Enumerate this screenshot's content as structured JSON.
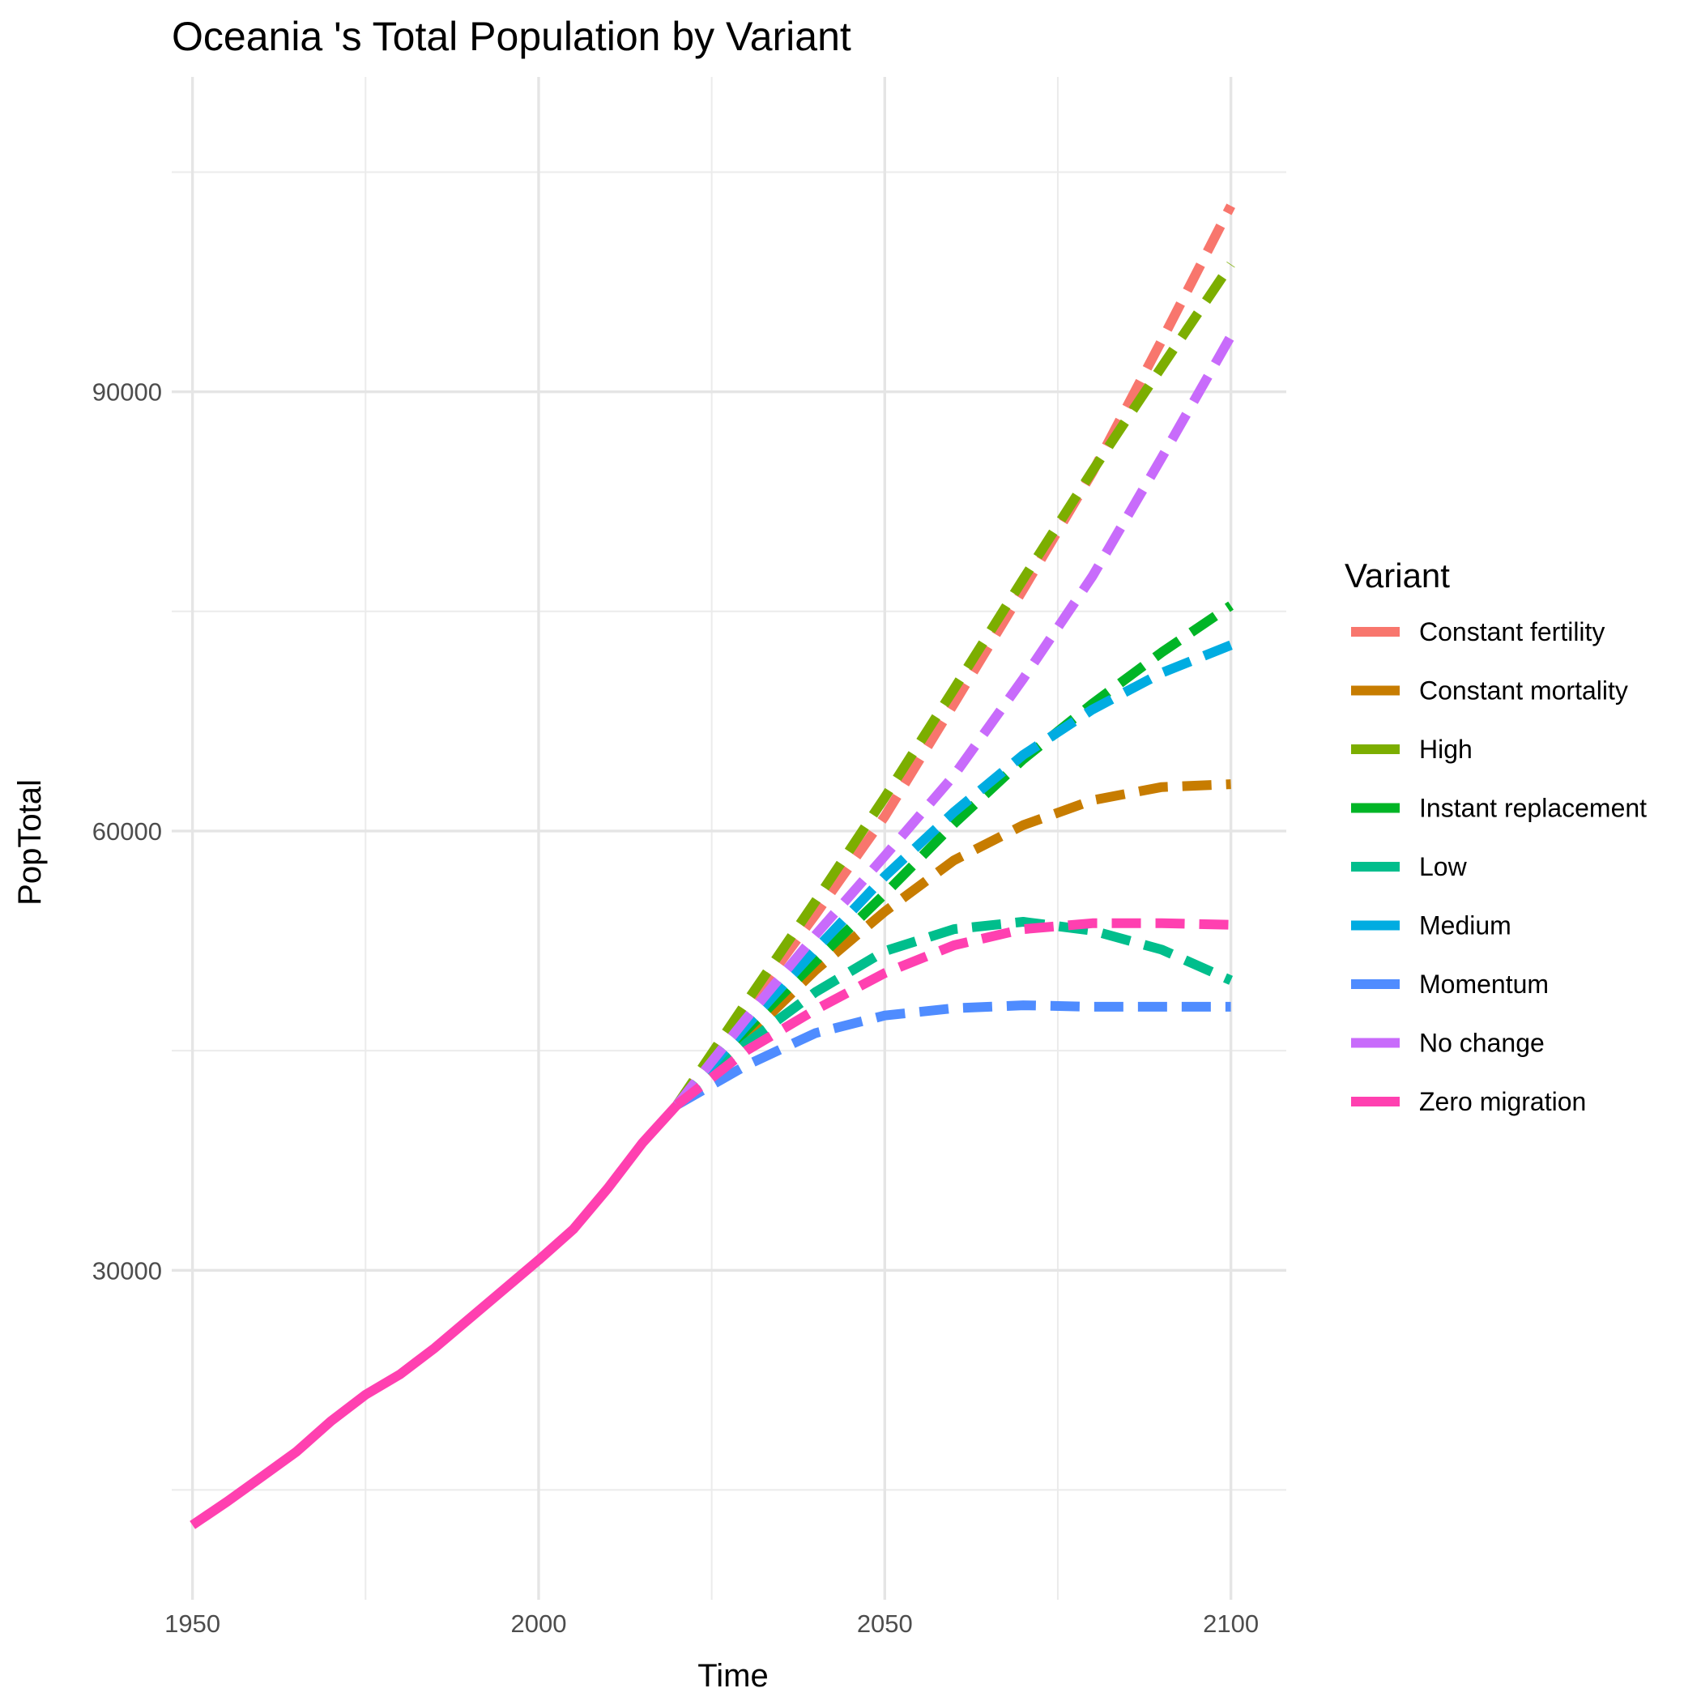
{
  "chart_data": {
    "type": "line",
    "title": "Oceania 's Total Population by Variant",
    "xlabel": "Time",
    "ylabel": "PopTotal",
    "xlim": [
      1947,
      2108
    ],
    "ylim": [
      7500,
      111500
    ],
    "x_ticks": [
      1950,
      2000,
      2050,
      2100
    ],
    "y_ticks": [
      30000,
      60000,
      90000
    ],
    "grid": true,
    "legend": {
      "title": "Variant",
      "position": "right"
    },
    "historical": {
      "color": "#FF40B0",
      "x": [
        1950,
        1955,
        1960,
        1965,
        1970,
        1975,
        1980,
        1985,
        1990,
        1995,
        2000,
        2005,
        2010,
        2015,
        2020
      ],
      "y": [
        12600,
        14200,
        15900,
        17600,
        19700,
        21500,
        22900,
        24700,
        26700,
        28700,
        30700,
        32800,
        35600,
        38700,
        41300
      ]
    },
    "series": [
      {
        "name": "Constant fertility",
        "color": "#F8766D",
        "x": [
          2020,
          2030,
          2040,
          2050,
          2060,
          2070,
          2080,
          2090,
          2100
        ],
        "y": [
          41300,
          47900,
          54300,
          61000,
          68700,
          76500,
          84500,
          93500,
          102700
        ]
      },
      {
        "name": "Constant mortality",
        "color": "#C77C00",
        "x": [
          2020,
          2030,
          2040,
          2050,
          2060,
          2070,
          2080,
          2090,
          2100
        ],
        "y": [
          41300,
          45900,
          50500,
          54500,
          58000,
          60400,
          62100,
          63000,
          63200
        ]
      },
      {
        "name": "High",
        "color": "#7CAE00",
        "x": [
          2020,
          2030,
          2040,
          2050,
          2060,
          2070,
          2080,
          2090,
          2100
        ],
        "y": [
          41300,
          48300,
          55200,
          62300,
          69700,
          77200,
          84600,
          91700,
          98700
        ]
      },
      {
        "name": "Instant replacement",
        "color": "#00B526",
        "x": [
          2020,
          2030,
          2040,
          2050,
          2060,
          2070,
          2080,
          2090,
          2100
        ],
        "y": [
          41300,
          46400,
          51100,
          55700,
          60500,
          64900,
          68700,
          72200,
          75400
        ]
      },
      {
        "name": "Low",
        "color": "#00BE8C",
        "x": [
          2020,
          2030,
          2040,
          2050,
          2060,
          2070,
          2080,
          2090,
          2100
        ],
        "y": [
          41300,
          45500,
          49000,
          51800,
          53300,
          53800,
          53200,
          51900,
          49800
        ]
      },
      {
        "name": "Medium",
        "color": "#00ACE1",
        "x": [
          2020,
          2030,
          2040,
          2050,
          2060,
          2070,
          2080,
          2090,
          2100
        ],
        "y": [
          41300,
          46700,
          51900,
          56900,
          61300,
          65200,
          68300,
          70800,
          72700
        ]
      },
      {
        "name": "Momentum",
        "color": "#4F8CFF",
        "x": [
          2020,
          2030,
          2040,
          2050,
          2060,
          2070,
          2080,
          2090,
          2100
        ],
        "y": [
          41300,
          44000,
          46200,
          47400,
          47900,
          48100,
          48000,
          48000,
          48000
        ]
      },
      {
        "name": "No change",
        "color": "#C86BFB",
        "x": [
          2020,
          2030,
          2040,
          2050,
          2060,
          2070,
          2080,
          2090,
          2100
        ],
        "y": [
          41300,
          47200,
          52900,
          58300,
          63800,
          70400,
          77400,
          85500,
          93800
        ]
      },
      {
        "name": "Zero migration",
        "color": "#FF40B0",
        "x": [
          2020,
          2030,
          2040,
          2050,
          2060,
          2070,
          2080,
          2090,
          2100
        ],
        "y": [
          41300,
          45000,
          47800,
          50300,
          52200,
          53300,
          53700,
          53700,
          53600
        ]
      }
    ]
  }
}
